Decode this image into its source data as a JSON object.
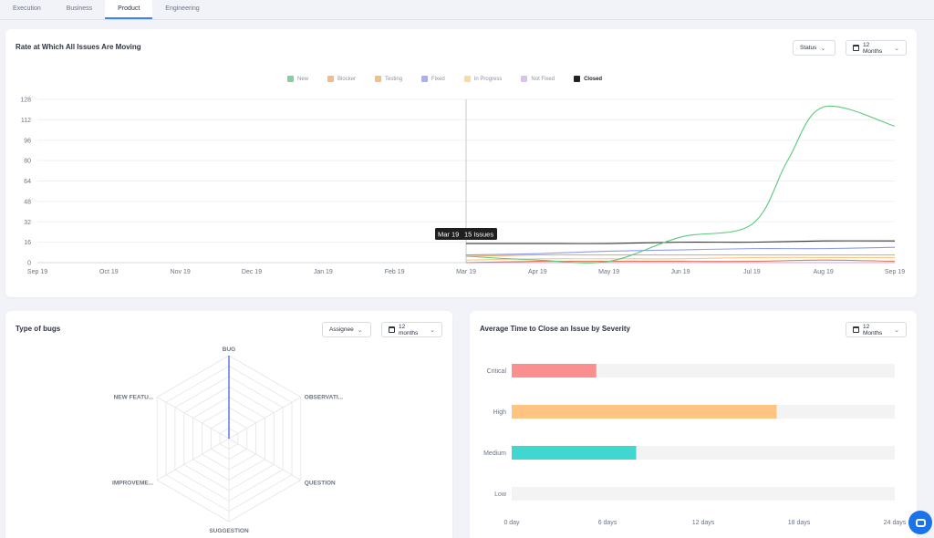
{
  "tabs": [
    "Execution",
    "Business",
    "Product",
    "Engineering"
  ],
  "active_tab": "Product",
  "rate_card": {
    "title": "Rate at Which All Issues Are Moving",
    "status_filter": "Status",
    "period_filter": "12 Months",
    "legend": [
      {
        "name": "New",
        "color": "#7fd39b"
      },
      {
        "name": "Blocker",
        "color": "#f7b98a"
      },
      {
        "name": "Testing",
        "color": "#f2bf85"
      },
      {
        "name": "Fixed",
        "color": "#a6b1ee"
      },
      {
        "name": "In Progress",
        "color": "#fcd9a1"
      },
      {
        "name": "Not Fixed",
        "color": "#d9c1f0"
      },
      {
        "name": "Closed",
        "color": "#222222"
      }
    ],
    "active_legend": "Closed",
    "tooltip": {
      "date": "Mar 19",
      "value": "15 Issues"
    }
  },
  "bugs_card": {
    "title": "Type of bugs",
    "assignee_filter": "Assignee",
    "period_filter": "12 months"
  },
  "severity_card": {
    "title": "Average Time to Close an Issue by Severity",
    "period_filter": "12 Months"
  },
  "chart_data": [
    {
      "type": "line",
      "x": [
        "Sep 19",
        "Oct 19",
        "Nov 19",
        "Dec 19",
        "Jan 19",
        "Feb 19",
        "Mar 19",
        "Apr 19",
        "May 19",
        "Jun 19",
        "Jul 19",
        "Aug 19",
        "Sep 19"
      ],
      "ylim": [
        0,
        128
      ],
      "yticks": [
        0,
        16,
        32,
        48,
        64,
        80,
        96,
        112,
        128
      ],
      "grid": true,
      "legend_position": "top-center",
      "series": [
        {
          "name": "New",
          "color": "#5cc97d",
          "points": [
            [
              6,
              5
            ],
            [
              7,
              2
            ],
            [
              8,
              1
            ],
            [
              9,
              20
            ],
            [
              10,
              30
            ],
            [
              10.5,
              80
            ],
            [
              11,
              122
            ],
            [
              12,
              107
            ]
          ]
        },
        {
          "name": "Closed",
          "color": "#333333",
          "points": [
            [
              6,
              15
            ],
            [
              7,
              15
            ],
            [
              8,
              15
            ],
            [
              9,
              16
            ],
            [
              10,
              16
            ],
            [
              11,
              17
            ],
            [
              12,
              17
            ]
          ]
        },
        {
          "name": "Fixed",
          "color": "#8e9be8",
          "points": [
            [
              6,
              6
            ],
            [
              7,
              7
            ],
            [
              8,
              9
            ],
            [
              9,
              10
            ],
            [
              10,
              11
            ],
            [
              11,
              11
            ],
            [
              12,
              12
            ]
          ]
        },
        {
          "name": "Testing",
          "color": "#f2a96b",
          "points": [
            [
              6,
              5
            ],
            [
              7,
              6
            ],
            [
              8,
              6
            ],
            [
              9,
              6
            ],
            [
              10,
              6
            ],
            [
              11,
              6
            ],
            [
              12,
              6
            ]
          ]
        },
        {
          "name": "In Progress",
          "color": "#f6c98a",
          "points": [
            [
              6,
              2
            ],
            [
              7,
              3
            ],
            [
              8,
              3
            ],
            [
              9,
              3
            ],
            [
              10,
              4
            ],
            [
              11,
              4
            ],
            [
              12,
              4
            ]
          ]
        },
        {
          "name": "Blocker",
          "color": "#e07a5f",
          "points": [
            [
              6,
              0
            ],
            [
              7,
              1
            ],
            [
              8,
              1
            ],
            [
              9,
              1
            ],
            [
              10,
              1
            ],
            [
              11,
              2
            ],
            [
              12,
              1
            ]
          ]
        },
        {
          "name": "Not Fixed",
          "color": "#c9a6ec",
          "points": [
            [
              6,
              0
            ],
            [
              7,
              0
            ],
            [
              8,
              0
            ],
            [
              9,
              0
            ],
            [
              10,
              0
            ],
            [
              11,
              0
            ],
            [
              12,
              0
            ]
          ]
        }
      ]
    },
    {
      "type": "radar",
      "axes": [
        "BUG",
        "OBSERVATI...",
        "QUESTION",
        "SUGGESTION",
        "IMPROVEME...",
        "NEW FEATU..."
      ],
      "rings": 8,
      "series": [
        {
          "values": [
            1.0,
            0,
            0,
            0,
            0,
            0
          ],
          "color": "#3b5bdb"
        }
      ]
    },
    {
      "type": "bar",
      "orientation": "horizontal",
      "categories": [
        "Critical",
        "High",
        "Medium",
        "Low"
      ],
      "values": [
        5.3,
        16.6,
        7.8,
        0
      ],
      "colors": [
        "#fb8e8e",
        "#ffc382",
        "#3fd7cf",
        "#f2f2f2"
      ],
      "xlim": [
        0,
        24
      ],
      "xticks": [
        "0 day",
        "6 days",
        "12 days",
        "18 days",
        "24 days"
      ],
      "xtick_values": [
        0,
        6,
        12,
        18,
        24
      ]
    }
  ]
}
